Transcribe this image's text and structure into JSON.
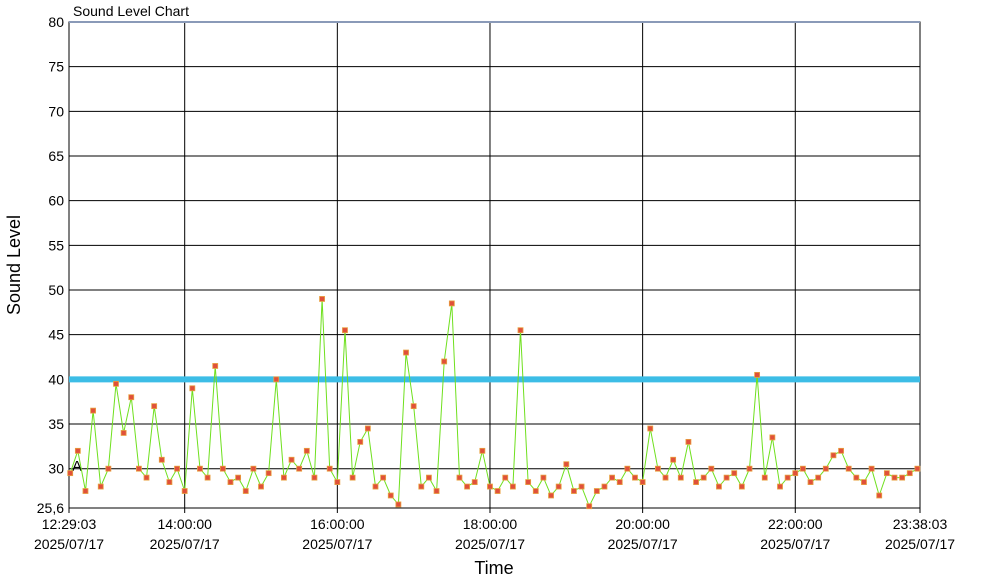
{
  "chart_data": {
    "type": "line",
    "title": "Sound Level Chart",
    "xlabel": "Time",
    "ylabel": "Sound Level",
    "annotation": "A",
    "xlim": [
      "2025/07/17 12:29:03",
      "2025/07/17 23:38:03"
    ],
    "xticks": [
      {
        "value": "2025/07/17 12:29:03",
        "label": [
          "12:29:03",
          "2025/07/17"
        ]
      },
      {
        "value": "2025/07/17 14:00:00",
        "label": [
          "14:00:00",
          "2025/07/17"
        ]
      },
      {
        "value": "2025/07/17 16:00:00",
        "label": [
          "16:00:00",
          "2025/07/17"
        ]
      },
      {
        "value": "2025/07/17 18:00:00",
        "label": [
          "18:00:00",
          "2025/07/17"
        ]
      },
      {
        "value": "2025/07/17 20:00:00",
        "label": [
          "20:00:00",
          "2025/07/17"
        ]
      },
      {
        "value": "2025/07/17 22:00:00",
        "label": [
          "22:00:00",
          "2025/07/17"
        ]
      },
      {
        "value": "2025/07/17 23:38:03",
        "label": [
          "23:38:03",
          "2025/07/17"
        ]
      }
    ],
    "ylim": [
      25.6,
      80
    ],
    "yticks": [
      {
        "value": 25.6,
        "label": "25,6"
      },
      30,
      35,
      40,
      45,
      50,
      55,
      60,
      65,
      70,
      75,
      80
    ],
    "grid": true,
    "reference_lines": [
      {
        "value": 40,
        "color": "#3cbde6"
      },
      {
        "value": 80,
        "color": "#8a9ab8"
      }
    ],
    "x": [
      "2025/07/17 12:30:00",
      "2025/07/17 12:36:00",
      "2025/07/17 12:42:00",
      "2025/07/17 12:48:00",
      "2025/07/17 12:54:00",
      "2025/07/17 13:00:00",
      "2025/07/17 13:06:00",
      "2025/07/17 13:12:00",
      "2025/07/17 13:18:00",
      "2025/07/17 13:24:00",
      "2025/07/17 13:30:00",
      "2025/07/17 13:36:00",
      "2025/07/17 13:42:00",
      "2025/07/17 13:48:00",
      "2025/07/17 13:54:00",
      "2025/07/17 14:00:00",
      "2025/07/17 14:06:00",
      "2025/07/17 14:12:00",
      "2025/07/17 14:18:00",
      "2025/07/17 14:24:00",
      "2025/07/17 14:30:00",
      "2025/07/17 14:36:00",
      "2025/07/17 14:42:00",
      "2025/07/17 14:48:00",
      "2025/07/17 14:54:00",
      "2025/07/17 15:00:00",
      "2025/07/17 15:06:00",
      "2025/07/17 15:12:00",
      "2025/07/17 15:18:00",
      "2025/07/17 15:24:00",
      "2025/07/17 15:30:00",
      "2025/07/17 15:36:00",
      "2025/07/17 15:42:00",
      "2025/07/17 15:48:00",
      "2025/07/17 15:54:00",
      "2025/07/17 16:00:00",
      "2025/07/17 16:06:00",
      "2025/07/17 16:12:00",
      "2025/07/17 16:18:00",
      "2025/07/17 16:24:00",
      "2025/07/17 16:30:00",
      "2025/07/17 16:36:00",
      "2025/07/17 16:42:00",
      "2025/07/17 16:48:00",
      "2025/07/17 16:54:00",
      "2025/07/17 17:00:00",
      "2025/07/17 17:06:00",
      "2025/07/17 17:12:00",
      "2025/07/17 17:18:00",
      "2025/07/17 17:24:00",
      "2025/07/17 17:30:00",
      "2025/07/17 17:36:00",
      "2025/07/17 17:42:00",
      "2025/07/17 17:48:00",
      "2025/07/17 17:54:00",
      "2025/07/17 18:00:00",
      "2025/07/17 18:06:00",
      "2025/07/17 18:12:00",
      "2025/07/17 18:18:00",
      "2025/07/17 18:24:00",
      "2025/07/17 18:30:00",
      "2025/07/17 18:36:00",
      "2025/07/17 18:42:00",
      "2025/07/17 18:48:00",
      "2025/07/17 18:54:00",
      "2025/07/17 19:00:00",
      "2025/07/17 19:06:00",
      "2025/07/17 19:12:00",
      "2025/07/17 19:18:00",
      "2025/07/17 19:24:00",
      "2025/07/17 19:30:00",
      "2025/07/17 19:36:00",
      "2025/07/17 19:42:00",
      "2025/07/17 19:48:00",
      "2025/07/17 19:54:00",
      "2025/07/17 20:00:00",
      "2025/07/17 20:06:00",
      "2025/07/17 20:12:00",
      "2025/07/17 20:18:00",
      "2025/07/17 20:24:00",
      "2025/07/17 20:30:00",
      "2025/07/17 20:36:00",
      "2025/07/17 20:42:00",
      "2025/07/17 20:48:00",
      "2025/07/17 20:54:00",
      "2025/07/17 21:00:00",
      "2025/07/17 21:06:00",
      "2025/07/17 21:12:00",
      "2025/07/17 21:18:00",
      "2025/07/17 21:24:00",
      "2025/07/17 21:30:00",
      "2025/07/17 21:36:00",
      "2025/07/17 21:42:00",
      "2025/07/17 21:48:00",
      "2025/07/17 21:54:00",
      "2025/07/17 22:00:00",
      "2025/07/17 22:06:00",
      "2025/07/17 22:12:00",
      "2025/07/17 22:18:00",
      "2025/07/17 22:24:00",
      "2025/07/17 22:30:00",
      "2025/07/17 22:36:00",
      "2025/07/17 22:42:00",
      "2025/07/17 22:48:00",
      "2025/07/17 22:54:00",
      "2025/07/17 23:00:00",
      "2025/07/17 23:06:00",
      "2025/07/17 23:12:00",
      "2025/07/17 23:18:00",
      "2025/07/17 23:24:00",
      "2025/07/17 23:30:00",
      "2025/07/17 23:36:00"
    ],
    "series": [
      {
        "color": "#6fe01e",
        "marker_color": "#e0503a",
        "values": [
          29.5,
          32,
          27.5,
          36.5,
          28,
          30,
          39.5,
          34,
          38,
          30,
          29,
          37,
          31,
          28.5,
          30,
          27.5,
          39,
          30,
          29,
          41.5,
          30,
          28.5,
          29,
          27.5,
          30,
          28,
          29.5,
          40,
          29,
          31,
          30,
          32,
          29,
          49,
          30,
          28.5,
          45.5,
          29,
          33,
          34.5,
          28,
          29,
          27,
          26,
          43,
          37,
          28,
          29,
          27.5,
          42,
          48.5,
          29,
          28,
          28.5,
          32,
          28,
          27.5,
          29,
          28,
          45.5,
          28.5,
          27.5,
          29,
          27,
          28,
          30.5,
          27.5,
          28,
          25.8,
          27.5,
          28,
          29,
          28.5,
          30,
          29,
          28.5,
          34.5,
          30,
          29,
          31,
          29,
          33,
          28.5,
          29,
          30,
          28,
          29,
          29.5,
          28,
          30,
          40.5,
          29,
          33.5,
          28,
          29,
          29.5,
          30,
          28.5,
          29,
          30,
          31.5,
          32,
          30,
          29,
          28.5,
          30,
          27,
          29.5,
          29,
          29,
          29.5,
          30
        ]
      }
    ]
  }
}
